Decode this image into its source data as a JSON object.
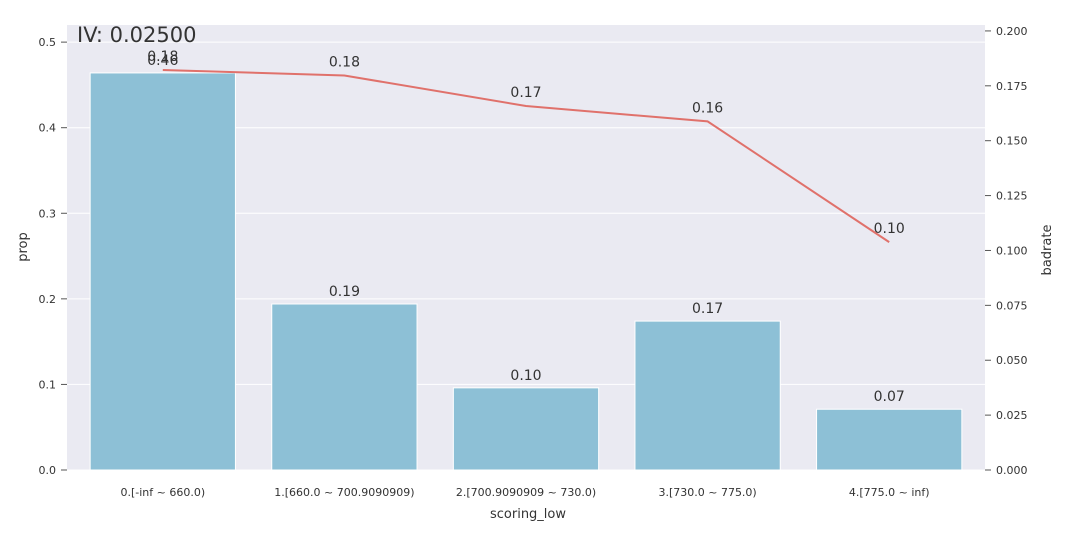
{
  "chart_data": {
    "type": "bar",
    "title": "IV: 0.02500",
    "xlabel": "scoring_low",
    "ylabel": "prop",
    "y2label": "badrate",
    "categories": [
      "0.[-inf ~ 660.0)",
      "1.[660.0 ~ 700.9090909)",
      "2.[700.9090909 ~ 730.0)",
      "3.[730.0 ~ 775.0)",
      "4.[775.0 ~ inf)"
    ],
    "series": [
      {
        "kind": "bar",
        "axis": "left",
        "values": [
          0.464,
          0.194,
          0.096,
          0.174,
          0.071
        ],
        "labels": [
          "0.46",
          "0.19",
          "0.10",
          "0.17",
          "0.07"
        ]
      },
      {
        "kind": "line",
        "axis": "right",
        "values": [
          0.1822,
          0.1797,
          0.1658,
          0.1588,
          0.1038
        ],
        "labels": [
          "0.18",
          "0.18",
          "0.17",
          "0.16",
          "0.10"
        ]
      }
    ],
    "ylim": [
      0,
      0.52
    ],
    "y2lim": [
      0,
      0.2027
    ],
    "yticks": [
      "0.0",
      "0.1",
      "0.2",
      "0.3",
      "0.4",
      "0.5"
    ],
    "y2ticks": [
      "0.000",
      "0.025",
      "0.050",
      "0.075",
      "0.100",
      "0.125",
      "0.150",
      "0.175",
      "0.200"
    ],
    "colors": {
      "bar": "#8dc0d6",
      "line": "#e0716b",
      "background": "#eaeaf2",
      "grid": "#ffffff"
    },
    "grid": true
  }
}
